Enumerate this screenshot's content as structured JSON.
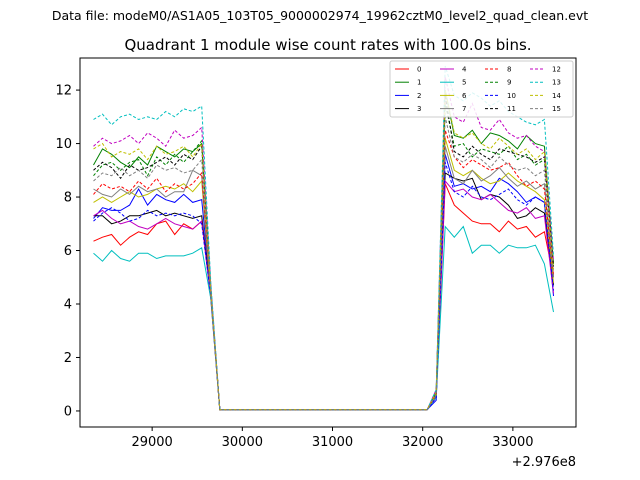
{
  "chart_data": {
    "type": "line",
    "suptitle": "Data file: modeM0/AS1A05_103T05_9000002974_19962cztM0_level2_quad_clean.evt",
    "title": "Quadrant 1 module wise count rates with 100.0s bins.",
    "xlabel": "",
    "ylabel": "",
    "x_offset_label": "+2.976e8",
    "xlim": [
      28200,
      33700
    ],
    "ylim": [
      -0.6,
      13.2
    ],
    "xticks": [
      29000,
      30000,
      31000,
      32000,
      33000
    ],
    "xtick_labels": [
      "29000",
      "30000",
      "31000",
      "32000",
      "33000"
    ],
    "yticks": [
      0,
      2,
      4,
      6,
      8,
      10,
      12
    ],
    "ytick_labels": [
      "0",
      "2",
      "4",
      "6",
      "8",
      "10",
      "12"
    ],
    "legend_position": "upper right",
    "x": [
      28350,
      28450,
      28550,
      28650,
      28750,
      28850,
      28950,
      29050,
      29150,
      29250,
      29350,
      29450,
      29550,
      29650,
      29750,
      29850,
      29950,
      30050,
      30150,
      30250,
      30350,
      30450,
      30550,
      30650,
      30750,
      30850,
      30950,
      31050,
      31150,
      31250,
      31350,
      31450,
      31550,
      31650,
      31750,
      31850,
      31950,
      32050,
      32150,
      32250,
      32350,
      32450,
      32550,
      32650,
      32750,
      32850,
      32950,
      33050,
      33150,
      33250,
      33350,
      33450
    ],
    "series": [
      {
        "name": "0",
        "color": "#ff0000",
        "dash": "solid",
        "values": [
          6.35,
          6.5,
          6.6,
          6.2,
          6.5,
          6.7,
          6.6,
          7.0,
          7.1,
          6.6,
          7.0,
          6.8,
          7.1,
          4.4,
          0.05,
          0.05,
          0.05,
          0.05,
          0.05,
          0.05,
          0.05,
          0.05,
          0.05,
          0.05,
          0.05,
          0.05,
          0.05,
          0.05,
          0.05,
          0.05,
          0.05,
          0.05,
          0.05,
          0.05,
          0.05,
          0.05,
          0.05,
          0.05,
          0.5,
          8.5,
          7.7,
          7.4,
          7.1,
          7.0,
          7.0,
          6.7,
          7.1,
          6.8,
          6.9,
          6.5,
          6.7,
          5.0
        ]
      },
      {
        "name": "1",
        "color": "#008000",
        "dash": "solid",
        "values": [
          9.2,
          9.8,
          9.6,
          9.3,
          9.1,
          9.5,
          9.2,
          9.9,
          9.7,
          9.5,
          9.8,
          9.7,
          10.0,
          4.5,
          0.05,
          0.05,
          0.05,
          0.05,
          0.05,
          0.05,
          0.05,
          0.05,
          0.05,
          0.05,
          0.05,
          0.05,
          0.05,
          0.05,
          0.05,
          0.05,
          0.05,
          0.05,
          0.05,
          0.05,
          0.05,
          0.05,
          0.05,
          0.05,
          0.7,
          12.0,
          10.3,
          10.2,
          10.5,
          10.0,
          10.4,
          10.3,
          10.1,
          9.8,
          10.3,
          10.0,
          9.9,
          5.5
        ]
      },
      {
        "name": "2",
        "color": "#0000ff",
        "dash": "solid",
        "values": [
          7.2,
          7.6,
          7.5,
          7.5,
          7.7,
          8.3,
          7.7,
          8.1,
          7.9,
          7.8,
          8.1,
          7.8,
          7.9,
          4.4,
          0.05,
          0.05,
          0.05,
          0.05,
          0.05,
          0.05,
          0.05,
          0.05,
          0.05,
          0.05,
          0.05,
          0.05,
          0.05,
          0.05,
          0.05,
          0.05,
          0.05,
          0.05,
          0.05,
          0.05,
          0.05,
          0.05,
          0.05,
          0.05,
          0.4,
          9.6,
          8.4,
          8.5,
          8.3,
          8.4,
          8.2,
          8.7,
          8.5,
          8.2,
          7.8,
          8.0,
          7.8,
          4.3
        ]
      },
      {
        "name": "3",
        "color": "#000000",
        "dash": "solid",
        "values": [
          7.3,
          7.3,
          7.0,
          7.1,
          7.3,
          7.3,
          7.4,
          7.5,
          7.3,
          7.4,
          7.3,
          7.2,
          7.3,
          4.3,
          0.05,
          0.05,
          0.05,
          0.05,
          0.05,
          0.05,
          0.05,
          0.05,
          0.05,
          0.05,
          0.05,
          0.05,
          0.05,
          0.05,
          0.05,
          0.05,
          0.05,
          0.05,
          0.05,
          0.05,
          0.05,
          0.05,
          0.05,
          0.05,
          0.6,
          8.9,
          8.7,
          8.6,
          8.7,
          7.9,
          8.1,
          8.0,
          7.7,
          7.2,
          7.3,
          7.6,
          7.4,
          4.7
        ]
      },
      {
        "name": "4",
        "color": "#c000c0",
        "dash": "solid",
        "values": [
          7.3,
          7.5,
          7.2,
          7.0,
          7.1,
          6.9,
          6.8,
          7.0,
          7.2,
          7.0,
          6.9,
          6.8,
          7.1,
          4.2,
          0.05,
          0.05,
          0.05,
          0.05,
          0.05,
          0.05,
          0.05,
          0.05,
          0.05,
          0.05,
          0.05,
          0.05,
          0.05,
          0.05,
          0.05,
          0.05,
          0.05,
          0.05,
          0.05,
          0.05,
          0.05,
          0.05,
          0.05,
          0.05,
          0.6,
          8.6,
          8.2,
          8.3,
          8.0,
          7.9,
          8.1,
          7.8,
          7.5,
          7.4,
          7.6,
          7.2,
          7.3,
          4.4
        ]
      },
      {
        "name": "5",
        "color": "#00bfbf",
        "dash": "solid",
        "values": [
          5.9,
          5.6,
          6.0,
          5.7,
          5.6,
          5.9,
          5.9,
          5.7,
          5.8,
          5.8,
          5.8,
          5.9,
          6.1,
          4.2,
          0.05,
          0.05,
          0.05,
          0.05,
          0.05,
          0.05,
          0.05,
          0.05,
          0.05,
          0.05,
          0.05,
          0.05,
          0.05,
          0.05,
          0.05,
          0.05,
          0.05,
          0.05,
          0.05,
          0.05,
          0.05,
          0.05,
          0.05,
          0.05,
          0.5,
          6.9,
          6.5,
          6.9,
          5.9,
          6.2,
          6.2,
          5.9,
          6.2,
          6.1,
          6.1,
          6.2,
          5.5,
          3.7
        ]
      },
      {
        "name": "6",
        "color": "#bfbf00",
        "dash": "solid",
        "values": [
          7.8,
          8.0,
          7.8,
          8.0,
          8.2,
          8.0,
          8.1,
          8.3,
          8.4,
          8.3,
          8.5,
          8.2,
          8.6,
          4.3,
          0.05,
          0.05,
          0.05,
          0.05,
          0.05,
          0.05,
          0.05,
          0.05,
          0.05,
          0.05,
          0.05,
          0.05,
          0.05,
          0.05,
          0.05,
          0.05,
          0.05,
          0.05,
          0.05,
          0.05,
          0.05,
          0.05,
          0.05,
          0.05,
          0.6,
          10.2,
          9.0,
          8.8,
          9.0,
          8.7,
          8.5,
          8.6,
          8.9,
          8.6,
          8.4,
          8.2,
          7.9,
          4.8
        ]
      },
      {
        "name": "7",
        "color": "#808080",
        "dash": "solid",
        "values": [
          8.3,
          8.1,
          8.0,
          8.3,
          8.1,
          8.4,
          8.2,
          8.3,
          8.0,
          8.2,
          8.2,
          9.0,
          8.8,
          4.4,
          0.05,
          0.05,
          0.05,
          0.05,
          0.05,
          0.05,
          0.05,
          0.05,
          0.05,
          0.05,
          0.05,
          0.05,
          0.05,
          0.05,
          0.05,
          0.05,
          0.05,
          0.05,
          0.05,
          0.05,
          0.05,
          0.05,
          0.05,
          0.05,
          0.7,
          9.9,
          8.7,
          8.5,
          9.0,
          8.6,
          8.8,
          9.1,
          8.7,
          8.4,
          8.6,
          8.3,
          8.5,
          5.0
        ]
      },
      {
        "name": "8",
        "color": "#ff0000",
        "dash": "dashed",
        "values": [
          8.1,
          8.5,
          8.3,
          8.4,
          8.2,
          8.6,
          8.3,
          8.7,
          8.2,
          8.5,
          8.3,
          8.5,
          8.9,
          4.5,
          0.05,
          0.05,
          0.05,
          0.05,
          0.05,
          0.05,
          0.05,
          0.05,
          0.05,
          0.05,
          0.05,
          0.05,
          0.05,
          0.05,
          0.05,
          0.05,
          0.05,
          0.05,
          0.05,
          0.05,
          0.05,
          0.05,
          0.05,
          0.05,
          0.6,
          10.5,
          9.5,
          9.1,
          9.4,
          9.2,
          9.0,
          9.1,
          9.3,
          8.8,
          8.4,
          8.6,
          8.3,
          5.1
        ]
      },
      {
        "name": "9",
        "color": "#008000",
        "dash": "dashed",
        "values": [
          8.8,
          9.2,
          9.3,
          9.0,
          9.3,
          9.4,
          8.8,
          9.5,
          9.2,
          9.6,
          9.3,
          9.7,
          10.1,
          4.6,
          0.05,
          0.05,
          0.05,
          0.05,
          0.05,
          0.05,
          0.05,
          0.05,
          0.05,
          0.05,
          0.05,
          0.05,
          0.05,
          0.05,
          0.05,
          0.05,
          0.05,
          0.05,
          0.05,
          0.05,
          0.05,
          0.05,
          0.05,
          0.05,
          0.7,
          11.5,
          9.9,
          10.0,
          9.5,
          9.8,
          9.7,
          9.6,
          9.9,
          9.4,
          9.6,
          9.2,
          9.4,
          5.3
        ]
      },
      {
        "name": "10",
        "color": "#0000ff",
        "dash": "dashed",
        "values": [
          7.1,
          7.4,
          7.6,
          7.4,
          7.1,
          7.2,
          7.5,
          7.3,
          7.4,
          7.3,
          7.4,
          7.3,
          7.0,
          4.3,
          0.05,
          0.05,
          0.05,
          0.05,
          0.05,
          0.05,
          0.05,
          0.05,
          0.05,
          0.05,
          0.05,
          0.05,
          0.05,
          0.05,
          0.05,
          0.05,
          0.05,
          0.05,
          0.05,
          0.05,
          0.05,
          0.05,
          0.05,
          0.05,
          0.5,
          9.3,
          8.2,
          8.0,
          8.4,
          8.0,
          7.9,
          8.1,
          8.3,
          7.9,
          7.7,
          8.0,
          7.8,
          4.5
        ]
      },
      {
        "name": "11",
        "color": "#000000",
        "dash": "dashed",
        "values": [
          9.0,
          9.3,
          9.1,
          8.7,
          9.2,
          9.0,
          9.1,
          9.3,
          9.5,
          9.2,
          9.6,
          9.4,
          9.9,
          4.6,
          0.05,
          0.05,
          0.05,
          0.05,
          0.05,
          0.05,
          0.05,
          0.05,
          0.05,
          0.05,
          0.05,
          0.05,
          0.05,
          0.05,
          0.05,
          0.05,
          0.05,
          0.05,
          0.05,
          0.05,
          0.05,
          0.05,
          0.05,
          0.05,
          0.7,
          11.8,
          9.7,
          9.5,
          9.9,
          9.6,
          9.4,
          9.8,
          9.7,
          9.6,
          9.5,
          9.3,
          9.5,
          5.4
        ]
      },
      {
        "name": "12",
        "color": "#c000c0",
        "dash": "dashed",
        "values": [
          9.9,
          10.2,
          10.0,
          10.1,
          10.3,
          10.0,
          10.4,
          10.2,
          9.9,
          10.5,
          10.2,
          10.3,
          10.6,
          4.7,
          0.05,
          0.05,
          0.05,
          0.05,
          0.05,
          0.05,
          0.05,
          0.05,
          0.05,
          0.05,
          0.05,
          0.05,
          0.05,
          0.05,
          0.05,
          0.05,
          0.05,
          0.05,
          0.05,
          0.05,
          0.05,
          0.05,
          0.05,
          0.05,
          0.8,
          12.5,
          11.0,
          10.8,
          11.5,
          10.6,
          10.5,
          10.9,
          10.4,
          10.2,
          10.3,
          9.9,
          9.7,
          5.6
        ]
      },
      {
        "name": "13",
        "color": "#00bfbf",
        "dash": "dashed",
        "values": [
          10.9,
          11.1,
          10.7,
          11.0,
          11.1,
          10.9,
          11.0,
          10.9,
          11.2,
          11.0,
          11.3,
          11.2,
          11.4,
          4.8,
          0.05,
          0.05,
          0.05,
          0.05,
          0.05,
          0.05,
          0.05,
          0.05,
          0.05,
          0.05,
          0.05,
          0.05,
          0.05,
          0.05,
          0.05,
          0.05,
          0.05,
          0.05,
          0.05,
          0.05,
          0.05,
          0.05,
          0.05,
          0.05,
          0.8,
          12.9,
          11.8,
          11.6,
          11.9,
          11.7,
          11.4,
          11.6,
          11.2,
          11.0,
          10.8,
          10.7,
          10.9,
          5.8
        ]
      },
      {
        "name": "14",
        "color": "#bfbf00",
        "dash": "dashed",
        "values": [
          9.8,
          10.0,
          9.5,
          9.7,
          9.6,
          9.8,
          9.4,
          9.9,
          9.6,
          9.7,
          9.9,
          9.5,
          10.0,
          4.5,
          0.05,
          0.05,
          0.05,
          0.05,
          0.05,
          0.05,
          0.05,
          0.05,
          0.05,
          0.05,
          0.05,
          0.05,
          0.05,
          0.05,
          0.05,
          0.05,
          0.05,
          0.05,
          0.05,
          0.05,
          0.05,
          0.05,
          0.05,
          0.05,
          0.7,
          12.0,
          10.4,
          10.2,
          10.4,
          10.0,
          9.8,
          10.2,
          9.9,
          9.6,
          9.8,
          9.4,
          9.7,
          5.2
        ]
      },
      {
        "name": "15",
        "color": "#808080",
        "dash": "dashed",
        "values": [
          8.6,
          8.9,
          8.8,
          9.1,
          8.8,
          9.0,
          8.7,
          9.2,
          9.0,
          9.1,
          8.9,
          9.0,
          9.4,
          4.4,
          0.05,
          0.05,
          0.05,
          0.05,
          0.05,
          0.05,
          0.05,
          0.05,
          0.05,
          0.05,
          0.05,
          0.05,
          0.05,
          0.05,
          0.05,
          0.05,
          0.05,
          0.05,
          0.05,
          0.05,
          0.05,
          0.05,
          0.05,
          0.05,
          0.6,
          11.0,
          9.5,
          9.3,
          9.6,
          9.4,
          9.1,
          9.5,
          9.2,
          9.0,
          9.1,
          8.8,
          9.0,
          5.0
        ]
      }
    ]
  }
}
